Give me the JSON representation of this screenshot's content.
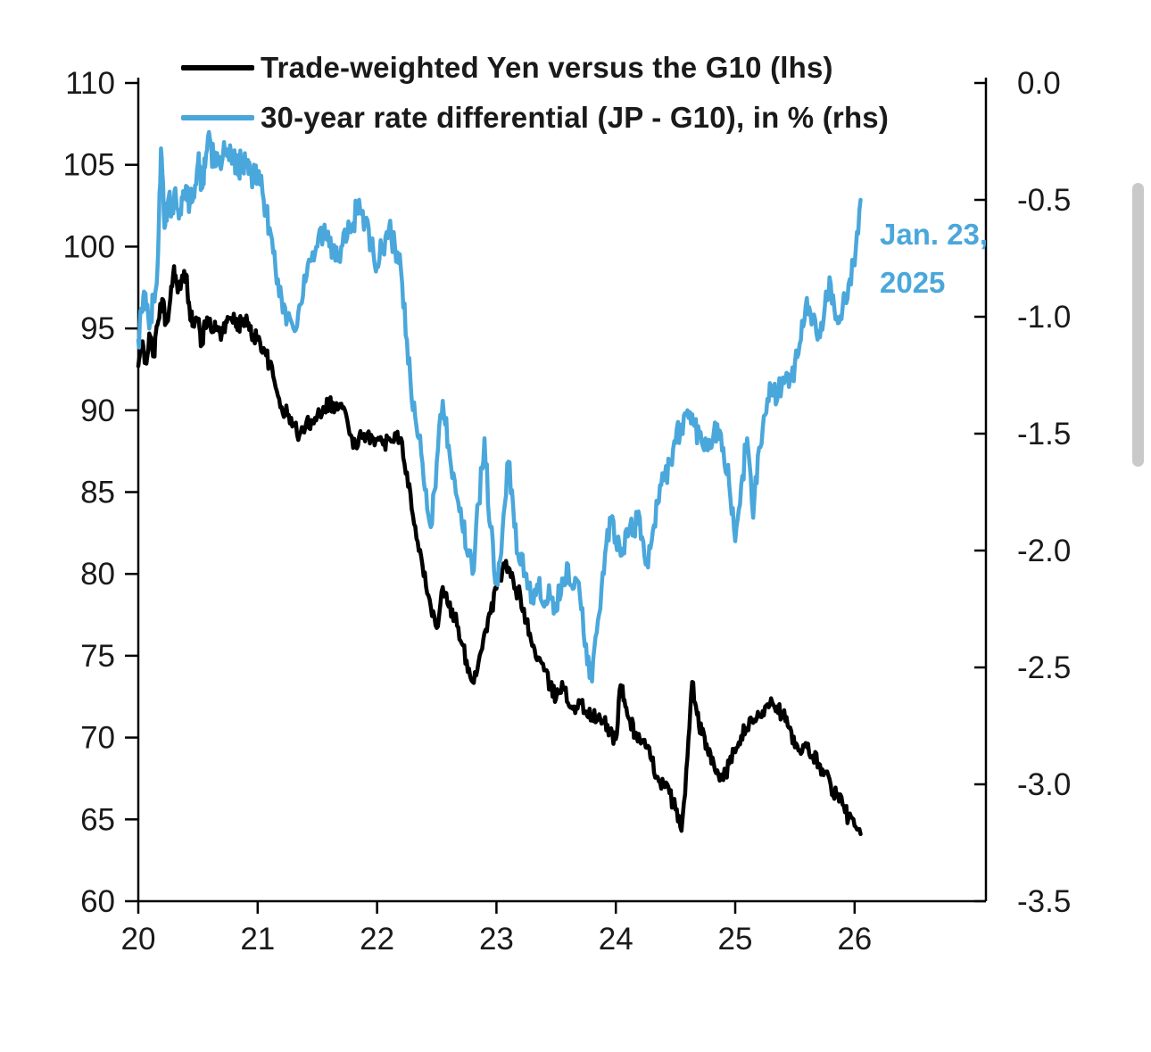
{
  "chart_data": {
    "type": "line",
    "title": "",
    "x_axis": {
      "label": "",
      "ticks": [
        "20",
        "21",
        "22",
        "23",
        "24",
        "25",
        "26"
      ],
      "range": [
        20,
        27.1
      ]
    },
    "left_axis": {
      "label": "",
      "ticks": [
        "110",
        "105",
        "100",
        "95",
        "90",
        "85",
        "80",
        "75",
        "70",
        "65",
        "60"
      ],
      "range": [
        60,
        110
      ]
    },
    "right_axis": {
      "label": "",
      "ticks": [
        "0.0",
        "-0.5",
        "-1.0",
        "-1.5",
        "-2.0",
        "-2.5",
        "-3.0",
        "-3.5"
      ],
      "range": [
        -3.5,
        0
      ]
    },
    "grid": "off",
    "legend_position": "top-left-inside",
    "annotation": {
      "line1": "Jan. 23,",
      "line2": "2025",
      "color": "#4AA7DB"
    },
    "series": [
      {
        "name": "Trade-weighted Yen versus the G10 (lhs)",
        "axis": "left",
        "color": "#000000",
        "points": [
          [
            20.0,
            92.7
          ],
          [
            20.03,
            94.2
          ],
          [
            20.06,
            93.0
          ],
          [
            20.1,
            94.5
          ],
          [
            20.13,
            93.3
          ],
          [
            20.16,
            95.2
          ],
          [
            20.2,
            96.8
          ],
          [
            20.23,
            95.3
          ],
          [
            20.26,
            96.3
          ],
          [
            20.3,
            98.8
          ],
          [
            20.33,
            97.2
          ],
          [
            20.36,
            97.8
          ],
          [
            20.4,
            98.3
          ],
          [
            20.43,
            96.2
          ],
          [
            20.46,
            95.2
          ],
          [
            20.5,
            95.6
          ],
          [
            20.53,
            94.0
          ],
          [
            20.56,
            95.2
          ],
          [
            20.6,
            95.6
          ],
          [
            20.63,
            94.8
          ],
          [
            20.66,
            95.1
          ],
          [
            20.7,
            94.7
          ],
          [
            20.73,
            95.2
          ],
          [
            20.76,
            95.6
          ],
          [
            20.8,
            95.9
          ],
          [
            20.83,
            94.9
          ],
          [
            20.86,
            95.4
          ],
          [
            20.9,
            95.6
          ],
          [
            20.93,
            94.9
          ],
          [
            20.96,
            94.6
          ],
          [
            21.0,
            94.4
          ],
          [
            21.05,
            93.8
          ],
          [
            21.1,
            92.8
          ],
          [
            21.15,
            91.4
          ],
          [
            21.2,
            90.2
          ],
          [
            21.25,
            89.7
          ],
          [
            21.3,
            89.1
          ],
          [
            21.35,
            88.5
          ],
          [
            21.4,
            89.0
          ],
          [
            21.45,
            89.4
          ],
          [
            21.5,
            89.7
          ],
          [
            21.55,
            90.2
          ],
          [
            21.6,
            90.5
          ],
          [
            21.65,
            90.1
          ],
          [
            21.7,
            90.4
          ],
          [
            21.75,
            89.4
          ],
          [
            21.8,
            87.7
          ],
          [
            21.85,
            88.4
          ],
          [
            21.9,
            88.1
          ],
          [
            21.95,
            88.5
          ],
          [
            22.0,
            88.2
          ],
          [
            22.05,
            87.9
          ],
          [
            22.1,
            88.3
          ],
          [
            22.15,
            88.6
          ],
          [
            22.2,
            88.3
          ],
          [
            22.25,
            86.2
          ],
          [
            22.3,
            83.6
          ],
          [
            22.35,
            81.4
          ],
          [
            22.4,
            80.1
          ],
          [
            22.45,
            78.0
          ],
          [
            22.5,
            76.7
          ],
          [
            22.55,
            79.2
          ],
          [
            22.6,
            78.0
          ],
          [
            22.65,
            77.4
          ],
          [
            22.7,
            75.9
          ],
          [
            22.75,
            74.7
          ],
          [
            22.8,
            73.4
          ],
          [
            22.85,
            74.6
          ],
          [
            22.9,
            76.4
          ],
          [
            22.95,
            77.6
          ],
          [
            23.0,
            79.1
          ],
          [
            23.05,
            80.2
          ],
          [
            23.1,
            80.4
          ],
          [
            23.15,
            79.1
          ],
          [
            23.2,
            78.7
          ],
          [
            23.25,
            77.1
          ],
          [
            23.3,
            75.6
          ],
          [
            23.35,
            74.9
          ],
          [
            23.4,
            74.1
          ],
          [
            23.45,
            73.1
          ],
          [
            23.5,
            72.4
          ],
          [
            23.55,
            73.4
          ],
          [
            23.6,
            72.1
          ],
          [
            23.65,
            71.9
          ],
          [
            23.7,
            72.1
          ],
          [
            23.75,
            71.6
          ],
          [
            23.8,
            71.3
          ],
          [
            23.85,
            71.1
          ],
          [
            23.9,
            70.9
          ],
          [
            23.95,
            70.4
          ],
          [
            24.0,
            69.9
          ],
          [
            24.04,
            73.2
          ],
          [
            24.08,
            71.9
          ],
          [
            24.12,
            71.0
          ],
          [
            24.16,
            70.3
          ],
          [
            24.2,
            69.9
          ],
          [
            24.25,
            69.4
          ],
          [
            24.3,
            68.6
          ],
          [
            24.35,
            67.6
          ],
          [
            24.4,
            67.1
          ],
          [
            24.45,
            66.6
          ],
          [
            24.5,
            65.6
          ],
          [
            24.55,
            64.3
          ],
          [
            24.6,
            68.8
          ],
          [
            24.64,
            73.4
          ],
          [
            24.68,
            71.4
          ],
          [
            24.72,
            70.2
          ],
          [
            24.76,
            69.6
          ],
          [
            24.8,
            68.4
          ],
          [
            24.85,
            68.0
          ],
          [
            24.9,
            67.4
          ],
          [
            24.95,
            68.4
          ],
          [
            25.0,
            69.1
          ],
          [
            25.05,
            70.1
          ],
          [
            25.1,
            70.6
          ],
          [
            25.15,
            70.9
          ],
          [
            25.2,
            71.3
          ],
          [
            25.25,
            71.9
          ],
          [
            25.3,
            72.4
          ],
          [
            25.35,
            71.9
          ],
          [
            25.4,
            71.4
          ],
          [
            25.45,
            70.6
          ],
          [
            25.5,
            69.4
          ],
          [
            25.55,
            69.0
          ],
          [
            25.6,
            69.4
          ],
          [
            25.65,
            68.9
          ],
          [
            25.7,
            68.4
          ],
          [
            25.75,
            67.9
          ],
          [
            25.8,
            67.1
          ],
          [
            25.85,
            66.4
          ],
          [
            25.9,
            65.9
          ],
          [
            25.95,
            65.1
          ],
          [
            26.0,
            64.6
          ],
          [
            26.05,
            64.1
          ]
        ]
      },
      {
        "name": "30-year rate differential (JP - G10), in % (rhs)",
        "axis": "right",
        "color": "#4AA7DB",
        "points": [
          [
            20.0,
            -1.1
          ],
          [
            20.03,
            -0.98
          ],
          [
            20.06,
            -0.9
          ],
          [
            20.1,
            -1.02
          ],
          [
            20.13,
            -0.92
          ],
          [
            20.16,
            -0.8
          ],
          [
            20.19,
            -0.28
          ],
          [
            20.22,
            -0.62
          ],
          [
            20.25,
            -0.5
          ],
          [
            20.28,
            -0.55
          ],
          [
            20.31,
            -0.45
          ],
          [
            20.34,
            -0.58
          ],
          [
            20.37,
            -0.5
          ],
          [
            20.4,
            -0.44
          ],
          [
            20.43,
            -0.52
          ],
          [
            20.46,
            -0.48
          ],
          [
            20.5,
            -0.34
          ],
          [
            20.53,
            -0.42
          ],
          [
            20.56,
            -0.36
          ],
          [
            20.6,
            -0.24
          ],
          [
            20.63,
            -0.34
          ],
          [
            20.66,
            -0.3
          ],
          [
            20.7,
            -0.34
          ],
          [
            20.73,
            -0.28
          ],
          [
            20.76,
            -0.33
          ],
          [
            20.8,
            -0.31
          ],
          [
            20.83,
            -0.38
          ],
          [
            20.86,
            -0.33
          ],
          [
            20.9,
            -0.36
          ],
          [
            20.93,
            -0.34
          ],
          [
            20.96,
            -0.4
          ],
          [
            21.0,
            -0.38
          ],
          [
            21.05,
            -0.5
          ],
          [
            21.1,
            -0.62
          ],
          [
            21.15,
            -0.8
          ],
          [
            21.2,
            -0.92
          ],
          [
            21.25,
            -1.0
          ],
          [
            21.3,
            -1.05
          ],
          [
            21.35,
            -0.95
          ],
          [
            21.4,
            -0.85
          ],
          [
            21.45,
            -0.76
          ],
          [
            21.5,
            -0.7
          ],
          [
            21.55,
            -0.64
          ],
          [
            21.6,
            -0.7
          ],
          [
            21.65,
            -0.76
          ],
          [
            21.7,
            -0.7
          ],
          [
            21.75,
            -0.66
          ],
          [
            21.8,
            -0.6
          ],
          [
            21.85,
            -0.5
          ],
          [
            21.9,
            -0.6
          ],
          [
            21.95,
            -0.7
          ],
          [
            22.0,
            -0.78
          ],
          [
            22.05,
            -0.7
          ],
          [
            22.1,
            -0.62
          ],
          [
            22.15,
            -0.7
          ],
          [
            22.2,
            -0.8
          ],
          [
            22.25,
            -1.1
          ],
          [
            22.3,
            -1.4
          ],
          [
            22.35,
            -1.52
          ],
          [
            22.4,
            -1.74
          ],
          [
            22.45,
            -1.9
          ],
          [
            22.5,
            -1.62
          ],
          [
            22.55,
            -1.36
          ],
          [
            22.6,
            -1.55
          ],
          [
            22.65,
            -1.7
          ],
          [
            22.7,
            -1.82
          ],
          [
            22.75,
            -2.0
          ],
          [
            22.8,
            -2.1
          ],
          [
            22.85,
            -1.8
          ],
          [
            22.9,
            -1.52
          ],
          [
            22.95,
            -1.9
          ],
          [
            23.0,
            -2.14
          ],
          [
            23.05,
            -1.92
          ],
          [
            23.1,
            -1.62
          ],
          [
            23.15,
            -1.9
          ],
          [
            23.2,
            -2.06
          ],
          [
            23.25,
            -2.1
          ],
          [
            23.3,
            -2.2
          ],
          [
            23.35,
            -2.16
          ],
          [
            23.4,
            -2.24
          ],
          [
            23.45,
            -2.2
          ],
          [
            23.5,
            -2.26
          ],
          [
            23.55,
            -2.12
          ],
          [
            23.6,
            -2.06
          ],
          [
            23.65,
            -2.16
          ],
          [
            23.7,
            -2.2
          ],
          [
            23.75,
            -2.4
          ],
          [
            23.8,
            -2.56
          ],
          [
            23.85,
            -2.3
          ],
          [
            23.9,
            -2.1
          ],
          [
            23.95,
            -1.86
          ],
          [
            24.0,
            -1.96
          ],
          [
            24.05,
            -2.02
          ],
          [
            24.1,
            -1.94
          ],
          [
            24.15,
            -1.9
          ],
          [
            24.2,
            -1.86
          ],
          [
            24.25,
            -2.06
          ],
          [
            24.3,
            -1.96
          ],
          [
            24.35,
            -1.8
          ],
          [
            24.4,
            -1.7
          ],
          [
            24.45,
            -1.62
          ],
          [
            24.5,
            -1.54
          ],
          [
            24.55,
            -1.46
          ],
          [
            24.6,
            -1.4
          ],
          [
            24.65,
            -1.46
          ],
          [
            24.7,
            -1.5
          ],
          [
            24.75,
            -1.52
          ],
          [
            24.8,
            -1.56
          ],
          [
            24.85,
            -1.46
          ],
          [
            24.9,
            -1.56
          ],
          [
            24.95,
            -1.72
          ],
          [
            25.0,
            -1.96
          ],
          [
            25.05,
            -1.72
          ],
          [
            25.1,
            -1.52
          ],
          [
            25.15,
            -1.86
          ],
          [
            25.2,
            -1.56
          ],
          [
            25.25,
            -1.42
          ],
          [
            25.3,
            -1.3
          ],
          [
            25.35,
            -1.36
          ],
          [
            25.4,
            -1.26
          ],
          [
            25.45,
            -1.3
          ],
          [
            25.5,
            -1.2
          ],
          [
            25.55,
            -1.1
          ],
          [
            25.6,
            -0.92
          ],
          [
            25.65,
            -1.02
          ],
          [
            25.7,
            -1.06
          ],
          [
            25.75,
            -0.96
          ],
          [
            25.8,
            -0.86
          ],
          [
            25.85,
            -1.0
          ],
          [
            25.9,
            -0.96
          ],
          [
            25.95,
            -0.86
          ],
          [
            26.0,
            -0.78
          ],
          [
            26.05,
            -0.5
          ]
        ]
      }
    ]
  }
}
